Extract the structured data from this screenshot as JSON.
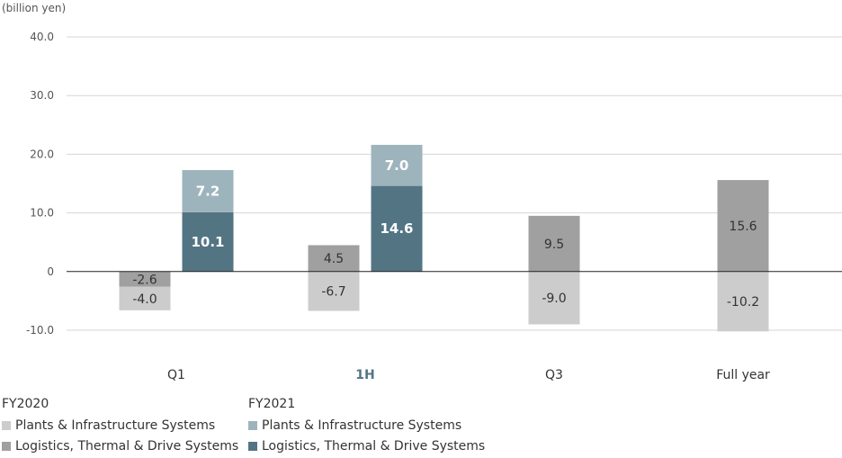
{
  "chart_data": {
    "type": "bar",
    "unit_label": "(billion yen)",
    "categories": [
      "Q1",
      "1H",
      "Q3",
      "Full year"
    ],
    "highlight_category": "1H",
    "ylim": [
      -10,
      40
    ],
    "yticks": [
      {
        "value": 40,
        "label": "40.0"
      },
      {
        "value": 30,
        "label": "30.0"
      },
      {
        "value": 20,
        "label": "20.0"
      },
      {
        "value": 10,
        "label": "10.0"
      },
      {
        "value": 0,
        "label": "0"
      },
      {
        "value": -10,
        "label": "-10.0"
      }
    ],
    "grid": true,
    "stacked": true,
    "groups": [
      {
        "name": "FY2020",
        "series": [
          {
            "name": "Plants & Infrastructure Systems",
            "color": "#cccccc",
            "label_color": "#333333",
            "bold": false,
            "values": [
              -4.0,
              -6.7,
              -9.0,
              -10.2
            ],
            "labels": [
              "-4.0",
              "-6.7",
              "-9.0",
              "-10.2"
            ]
          },
          {
            "name": "Logistics, Thermal & Drive Systems",
            "color": "#a0a0a0",
            "label_color": "#333333",
            "bold": false,
            "values": [
              -2.6,
              4.5,
              9.5,
              15.6
            ],
            "labels": [
              "-2.6",
              "4.5",
              "9.5",
              "15.6"
            ]
          }
        ]
      },
      {
        "name": "FY2021",
        "series": [
          {
            "name": "Plants & Infrastructure Systems",
            "color": "#9eb4bc",
            "label_color": "#ffffff",
            "bold": true,
            "values": [
              7.2,
              7.0,
              null,
              null
            ],
            "labels": [
              "7.2",
              "7.0",
              "",
              ""
            ]
          },
          {
            "name": "Logistics, Thermal & Drive Systems",
            "color": "#537583",
            "label_color": "#ffffff",
            "bold": true,
            "values": [
              10.1,
              14.6,
              null,
              null
            ],
            "labels": [
              "10.1",
              "14.6",
              "",
              ""
            ]
          }
        ]
      }
    ],
    "legend": [
      {
        "title": "FY2020",
        "items": [
          {
            "label": "Plants & Infrastructure Systems",
            "color": "#cccccc"
          },
          {
            "label": "Logistics, Thermal & Drive Systems",
            "color": "#a0a0a0"
          }
        ]
      },
      {
        "title": "FY2021",
        "items": [
          {
            "label": "Plants & Infrastructure Systems",
            "color": "#9eb4bc"
          },
          {
            "label": "Logistics, Thermal & Drive Systems",
            "color": "#537583"
          }
        ]
      }
    ],
    "legend_position": "bottom-left"
  }
}
